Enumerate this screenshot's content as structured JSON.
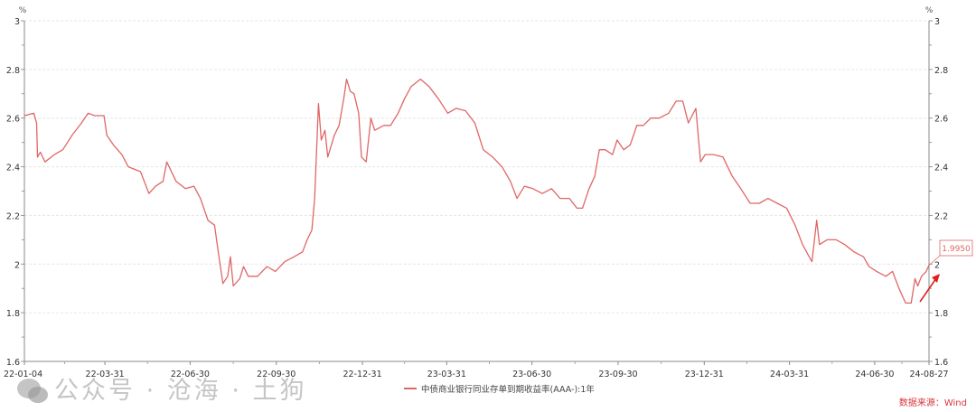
{
  "chart_data": {
    "type": "line",
    "title": "",
    "ylabel_left": "%",
    "ylabel_right": "%",
    "ylim": [
      1.6,
      3.0
    ],
    "yticks": [
      "1.6",
      "1.8",
      "2",
      "2.2",
      "2.4",
      "2.6",
      "2.8",
      "3"
    ],
    "xlim": [
      "2022-01-04",
      "2024-08-27"
    ],
    "xticks": [
      {
        "date": "2022-01-04",
        "label": "22-01-04"
      },
      {
        "date": "2022-03-31",
        "label": "22-03-31"
      },
      {
        "date": "2022-06-30",
        "label": "22-06-30"
      },
      {
        "date": "2022-09-30",
        "label": "22-09-30"
      },
      {
        "date": "2022-12-31",
        "label": "22-12-31"
      },
      {
        "date": "2023-03-31",
        "label": "23-03-31"
      },
      {
        "date": "2023-06-30",
        "label": "23-06-30"
      },
      {
        "date": "2023-09-30",
        "label": "23-09-30"
      },
      {
        "date": "2023-12-31",
        "label": "23-12-31"
      },
      {
        "date": "2024-03-31",
        "label": "24-03-31"
      },
      {
        "date": "2024-06-30",
        "label": "24-06-30"
      },
      {
        "date": "2024-08-27",
        "label": "24-08-27"
      }
    ],
    "grid": true,
    "legend_position": "bottom",
    "series": [
      {
        "name": "中债商业银行同业存单到期收益率(AAA-):1年",
        "color": "#e06666",
        "points": [
          [
            "2022-01-04",
            2.61
          ],
          [
            "2022-01-14",
            2.62
          ],
          [
            "2022-01-17",
            2.58
          ],
          [
            "2022-01-18",
            2.44
          ],
          [
            "2022-01-21",
            2.46
          ],
          [
            "2022-01-26",
            2.42
          ],
          [
            "2022-02-05",
            2.45
          ],
          [
            "2022-02-14",
            2.47
          ],
          [
            "2022-02-24",
            2.53
          ],
          [
            "2022-03-06",
            2.58
          ],
          [
            "2022-03-13",
            2.62
          ],
          [
            "2022-03-20",
            2.61
          ],
          [
            "2022-03-30",
            2.61
          ],
          [
            "2022-04-02",
            2.53
          ],
          [
            "2022-04-09",
            2.49
          ],
          [
            "2022-04-18",
            2.45
          ],
          [
            "2022-04-25",
            2.4
          ],
          [
            "2022-05-08",
            2.38
          ],
          [
            "2022-05-17",
            2.29
          ],
          [
            "2022-05-24",
            2.32
          ],
          [
            "2022-06-01",
            2.34
          ],
          [
            "2022-06-05",
            2.42
          ],
          [
            "2022-06-15",
            2.34
          ],
          [
            "2022-06-25",
            2.31
          ],
          [
            "2022-07-04",
            2.32
          ],
          [
            "2022-07-11",
            2.27
          ],
          [
            "2022-07-19",
            2.18
          ],
          [
            "2022-07-26",
            2.16
          ],
          [
            "2022-07-30",
            2.05
          ],
          [
            "2022-08-04",
            1.92
          ],
          [
            "2022-08-09",
            1.95
          ],
          [
            "2022-08-12",
            2.03
          ],
          [
            "2022-08-15",
            1.91
          ],
          [
            "2022-08-22",
            1.94
          ],
          [
            "2022-08-26",
            1.99
          ],
          [
            "2022-08-31",
            1.95
          ],
          [
            "2022-09-10",
            1.95
          ],
          [
            "2022-09-20",
            1.99
          ],
          [
            "2022-09-29",
            1.97
          ],
          [
            "2022-10-09",
            2.01
          ],
          [
            "2022-10-19",
            2.03
          ],
          [
            "2022-10-28",
            2.05
          ],
          [
            "2022-11-02",
            2.1
          ],
          [
            "2022-11-07",
            2.14
          ],
          [
            "2022-11-10",
            2.27
          ],
          [
            "2022-11-14",
            2.66
          ],
          [
            "2022-11-17",
            2.51
          ],
          [
            "2022-11-21",
            2.55
          ],
          [
            "2022-11-24",
            2.44
          ],
          [
            "2022-12-01",
            2.53
          ],
          [
            "2022-12-06",
            2.57
          ],
          [
            "2022-12-11",
            2.68
          ],
          [
            "2022-12-14",
            2.76
          ],
          [
            "2022-12-18",
            2.71
          ],
          [
            "2022-12-22",
            2.7
          ],
          [
            "2022-12-27",
            2.62
          ],
          [
            "2022-12-30",
            2.44
          ],
          [
            "2023-01-04",
            2.42
          ],
          [
            "2023-01-09",
            2.6
          ],
          [
            "2023-01-13",
            2.55
          ],
          [
            "2023-01-23",
            2.57
          ],
          [
            "2023-01-30",
            2.57
          ],
          [
            "2023-02-07",
            2.62
          ],
          [
            "2023-02-14",
            2.68
          ],
          [
            "2023-02-21",
            2.73
          ],
          [
            "2023-03-03",
            2.76
          ],
          [
            "2023-03-12",
            2.73
          ],
          [
            "2023-03-22",
            2.68
          ],
          [
            "2023-04-01",
            2.62
          ],
          [
            "2023-04-10",
            2.64
          ],
          [
            "2023-04-20",
            2.63
          ],
          [
            "2023-04-30",
            2.58
          ],
          [
            "2023-05-09",
            2.47
          ],
          [
            "2023-05-19",
            2.44
          ],
          [
            "2023-05-29",
            2.4
          ],
          [
            "2023-06-07",
            2.34
          ],
          [
            "2023-06-14",
            2.27
          ],
          [
            "2023-06-22",
            2.32
          ],
          [
            "2023-07-01",
            2.31
          ],
          [
            "2023-07-11",
            2.29
          ],
          [
            "2023-07-21",
            2.31
          ],
          [
            "2023-07-30",
            2.27
          ],
          [
            "2023-08-09",
            2.27
          ],
          [
            "2023-08-17",
            2.23
          ],
          [
            "2023-08-23",
            2.23
          ],
          [
            "2023-08-30",
            2.31
          ],
          [
            "2023-09-05",
            2.36
          ],
          [
            "2023-09-10",
            2.47
          ],
          [
            "2023-09-16",
            2.47
          ],
          [
            "2023-09-24",
            2.45
          ],
          [
            "2023-09-29",
            2.51
          ],
          [
            "2023-10-06",
            2.47
          ],
          [
            "2023-10-13",
            2.49
          ],
          [
            "2023-10-20",
            2.57
          ],
          [
            "2023-10-27",
            2.57
          ],
          [
            "2023-11-04",
            2.6
          ],
          [
            "2023-11-13",
            2.6
          ],
          [
            "2023-11-23",
            2.62
          ],
          [
            "2023-12-01",
            2.67
          ],
          [
            "2023-12-08",
            2.67
          ],
          [
            "2023-12-14",
            2.58
          ],
          [
            "2023-12-22",
            2.64
          ],
          [
            "2023-12-27",
            2.42
          ],
          [
            "2024-01-01",
            2.45
          ],
          [
            "2024-01-10",
            2.45
          ],
          [
            "2024-01-20",
            2.44
          ],
          [
            "2024-01-30",
            2.36
          ],
          [
            "2024-02-08",
            2.31
          ],
          [
            "2024-02-18",
            2.25
          ],
          [
            "2024-02-28",
            2.25
          ],
          [
            "2024-03-08",
            2.27
          ],
          [
            "2024-03-18",
            2.25
          ],
          [
            "2024-03-28",
            2.23
          ],
          [
            "2024-04-06",
            2.16
          ],
          [
            "2024-04-14",
            2.08
          ],
          [
            "2024-04-21",
            2.03
          ],
          [
            "2024-04-24",
            2.01
          ],
          [
            "2024-04-29",
            2.18
          ],
          [
            "2024-05-02",
            2.08
          ],
          [
            "2024-05-10",
            2.1
          ],
          [
            "2024-05-20",
            2.1
          ],
          [
            "2024-05-29",
            2.08
          ],
          [
            "2024-06-08",
            2.05
          ],
          [
            "2024-06-18",
            2.03
          ],
          [
            "2024-06-24",
            1.99
          ],
          [
            "2024-07-02",
            1.97
          ],
          [
            "2024-07-12",
            1.95
          ],
          [
            "2024-07-19",
            1.97
          ],
          [
            "2024-07-26",
            1.9
          ],
          [
            "2024-08-02",
            1.84
          ],
          [
            "2024-08-08",
            1.84
          ],
          [
            "2024-08-12",
            1.94
          ],
          [
            "2024-08-15",
            1.91
          ],
          [
            "2024-08-19",
            1.95
          ],
          [
            "2024-08-24",
            1.97
          ],
          [
            "2024-08-27",
            1.995
          ]
        ]
      }
    ],
    "annotations": [
      {
        "label": "1.9950",
        "date": "2024-08-27",
        "value": 1.995,
        "color": "#e06666"
      }
    ],
    "arrow_color": "#e02020"
  },
  "source": "数据来源：Wind",
  "watermark": "公众号 · 沧海 · 土狗"
}
